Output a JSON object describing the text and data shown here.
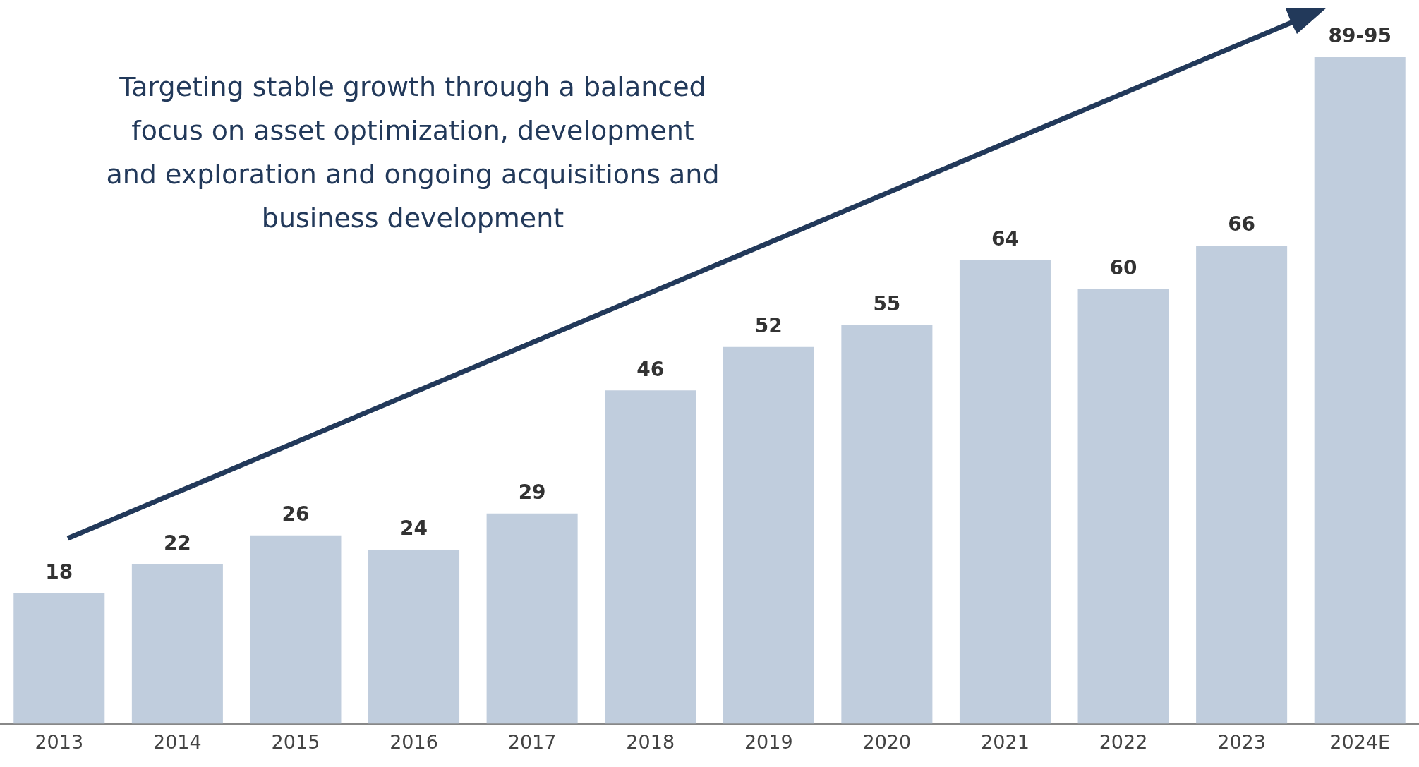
{
  "chart_data": {
    "type": "bar",
    "categories": [
      "2013",
      "2014",
      "2015",
      "2016",
      "2017",
      "2018",
      "2019",
      "2020",
      "2021",
      "2022",
      "2023",
      "2024E"
    ],
    "values": [
      18,
      22,
      26,
      24,
      29,
      46,
      52,
      55,
      64,
      60,
      66,
      92
    ],
    "value_labels": [
      "18",
      "22",
      "26",
      "24",
      "29",
      "46",
      "52",
      "55",
      "64",
      "60",
      "66",
      "89-95"
    ],
    "color": "#c0cddd",
    "grid": false,
    "legend": false,
    "annotations": [
      "Targeting stable growth through a balanced focus on asset optimization, development and exploration and ongoing acquisitions and business development"
    ]
  }
}
